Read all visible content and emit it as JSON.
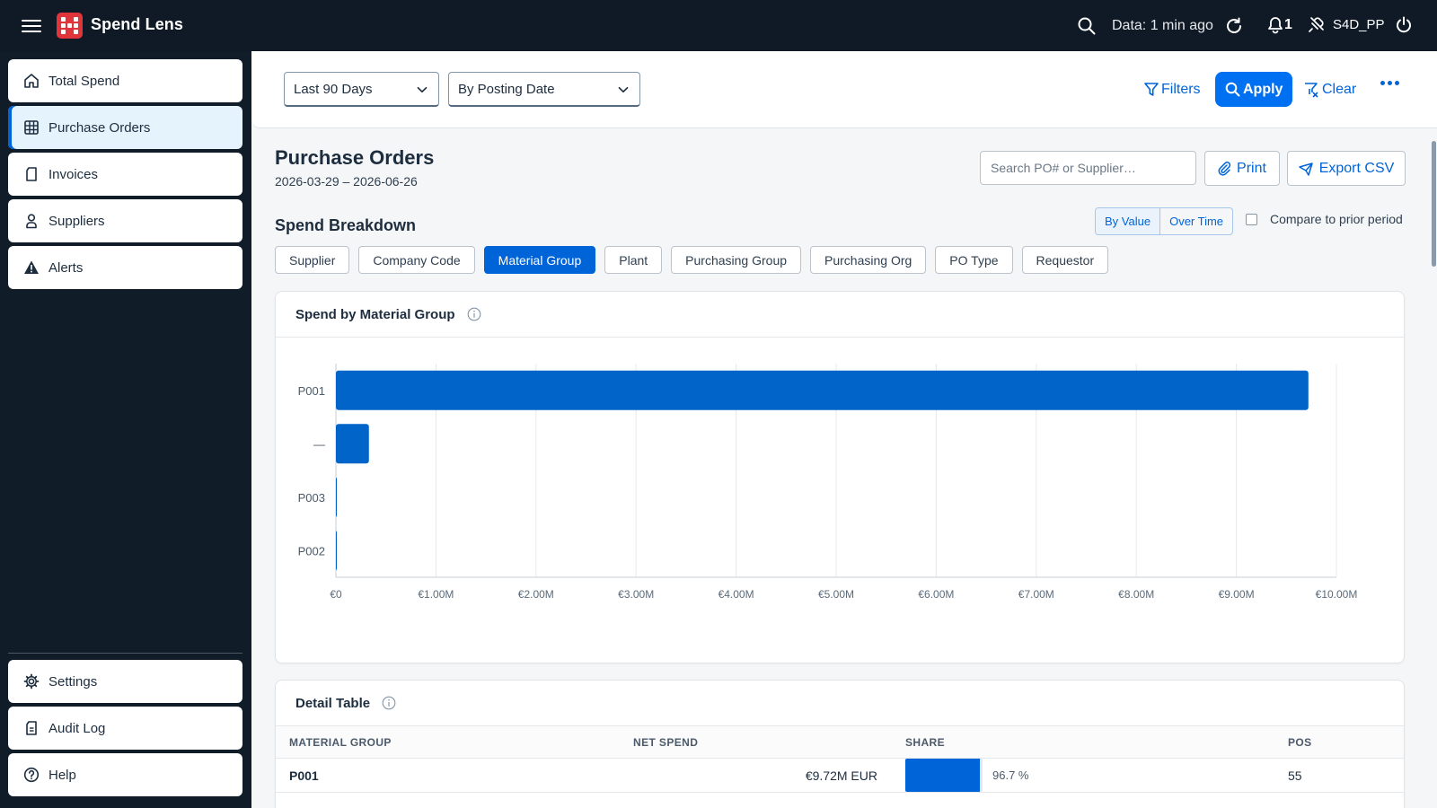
{
  "shell": {
    "app_title": "Spend Lens",
    "data_age": "Data: 1 min ago",
    "notification_count": "1",
    "system_name": "S4D_PP"
  },
  "sidebar": {
    "items": [
      {
        "label": "Total Spend",
        "icon": "home-icon"
      },
      {
        "label": "Purchase Orders",
        "icon": "grid-icon",
        "active": true
      },
      {
        "label": "Invoices",
        "icon": "document-icon"
      },
      {
        "label": "Suppliers",
        "icon": "person-icon"
      },
      {
        "label": "Alerts",
        "icon": "warning-icon"
      }
    ],
    "bottom_items": [
      {
        "label": "Settings",
        "icon": "gear-icon"
      },
      {
        "label": "Audit Log",
        "icon": "log-icon"
      },
      {
        "label": "Help",
        "icon": "help-icon"
      }
    ]
  },
  "filterbar": {
    "period_value": "Last 90 Days",
    "date_basis_value": "By Posting Date",
    "filters_label": "Filters",
    "apply_label": "Apply",
    "clear_label": "Clear"
  },
  "page": {
    "title": "Purchase Orders",
    "date_range": "2026-03-29 – 2026-06-26",
    "search_placeholder": "Search PO# or Supplier…",
    "print_label": "Print",
    "export_label": "Export CSV"
  },
  "breakdown": {
    "title": "Spend Breakdown",
    "view_toggle": [
      "By Value",
      "Over Time"
    ],
    "compare_label": "Compare to prior period",
    "chips": [
      "Supplier",
      "Company Code",
      "Material Group",
      "Plant",
      "Purchasing Group",
      "Purchasing Org",
      "PO Type",
      "Requestor"
    ],
    "selected_chip": "Material Group"
  },
  "chart_card": {
    "title": "Spend by Material Group"
  },
  "chart_data": {
    "type": "bar",
    "orientation": "horizontal",
    "categories": [
      "P001",
      "—",
      "P003",
      "P002"
    ],
    "values": [
      9720000,
      330000,
      8000,
      5000
    ],
    "xlim": [
      0,
      10000000
    ],
    "x_ticks": [
      0,
      1000000,
      2000000,
      3000000,
      4000000,
      5000000,
      6000000,
      7000000,
      8000000,
      9000000,
      10000000
    ],
    "x_tick_labels": [
      "€0",
      "€1.00M",
      "€2.00M",
      "€3.00M",
      "€4.00M",
      "€5.00M",
      "€6.00M",
      "€7.00M",
      "€8.00M",
      "€9.00M",
      "€10.00M"
    ],
    "grid": true,
    "color": "#0064c8"
  },
  "detail_table": {
    "title": "Detail Table",
    "columns": [
      "MATERIAL GROUP",
      "NET SPEND",
      "SHARE",
      "POS"
    ],
    "rows": [
      {
        "group": "P001",
        "net_spend": "€9.72M EUR",
        "share": "96.7 %",
        "share_value": 0.967,
        "pos": "55"
      }
    ]
  }
}
